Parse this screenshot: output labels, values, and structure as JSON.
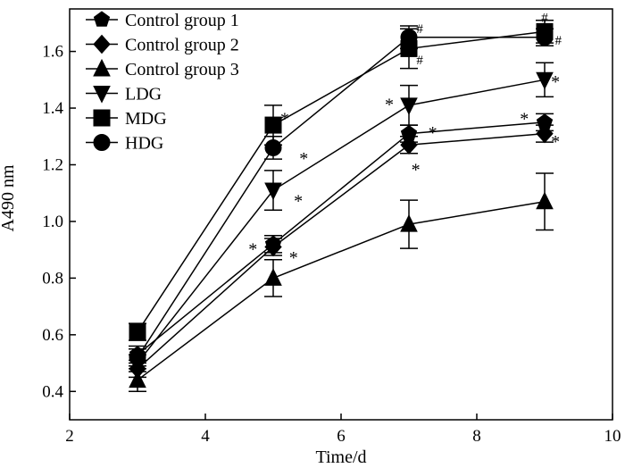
{
  "chart_data": {
    "type": "line",
    "title": "",
    "xlabel": "Time/d",
    "ylabel": "A490 nm",
    "xlim": [
      2,
      10
    ],
    "ylim": [
      0.3,
      1.75
    ],
    "xticks": [
      2,
      4,
      6,
      8,
      10
    ],
    "yticks": [
      0.4,
      0.6,
      0.8,
      1.0,
      1.2,
      1.4,
      1.6
    ],
    "xtick_labels": [
      "2",
      "4",
      "6",
      "8",
      "10"
    ],
    "ytick_labels": [
      "0.4",
      "0.6",
      "0.8",
      "1.0",
      "1.2",
      "1.4",
      "1.6"
    ],
    "grid": false,
    "legend_position": "top-left",
    "x": [
      3,
      5,
      7,
      9
    ],
    "series": [
      {
        "name": "Control group 1",
        "marker": "pentagon",
        "values": [
          0.53,
          0.92,
          1.31,
          1.35
        ],
        "errors": [
          0.03,
          0.03,
          0.03,
          0.03
        ]
      },
      {
        "name": "Control group 2",
        "marker": "diamond",
        "values": [
          0.48,
          0.91,
          1.27,
          1.31
        ],
        "errors": [
          0.03,
          0.03,
          0.03,
          0.03
        ]
      },
      {
        "name": "Control group 3",
        "marker": "triangle-up",
        "values": [
          0.44,
          0.8,
          0.99,
          1.07
        ],
        "errors": [
          0.04,
          0.065,
          0.085,
          0.1
        ]
      },
      {
        "name": "LDG",
        "marker": "triangle-down",
        "values": [
          0.5,
          1.11,
          1.41,
          1.5
        ],
        "errors": [
          0.03,
          0.07,
          0.07,
          0.06
        ]
      },
      {
        "name": "MDG",
        "marker": "square",
        "values": [
          0.61,
          1.34,
          1.61,
          1.67
        ],
        "errors": [
          0.03,
          0.07,
          0.07,
          0.04
        ]
      },
      {
        "name": "HDG",
        "marker": "circle",
        "values": [
          0.52,
          1.26,
          1.65,
          1.65
        ],
        "errors": [
          0.03,
          0.04,
          0.04,
          0.03
        ]
      }
    ],
    "annotations": [
      {
        "text": "*",
        "x": 5.17,
        "y": 1.38
      },
      {
        "text": "*",
        "x": 5.45,
        "y": 1.24
      },
      {
        "text": "*",
        "x": 5.37,
        "y": 1.09
      },
      {
        "text": "*",
        "x": 4.7,
        "y": 0.92
      },
      {
        "text": "*",
        "x": 5.3,
        "y": 0.89
      },
      {
        "text": "*",
        "x": 6.71,
        "y": 1.43
      },
      {
        "text": "*",
        "x": 7.35,
        "y": 1.33
      },
      {
        "text": "*",
        "x": 7.1,
        "y": 1.2
      },
      {
        "text": "*",
        "x": 9.16,
        "y": 1.51
      },
      {
        "text": "*",
        "x": 8.7,
        "y": 1.38
      },
      {
        "text": "*",
        "x": 9.16,
        "y": 1.3
      },
      {
        "text": "#",
        "x": 7.16,
        "y": 1.68
      },
      {
        "text": "#",
        "x": 7.16,
        "y": 1.57
      },
      {
        "text": "#",
        "x": 9.0,
        "y": 1.72
      },
      {
        "text": "#",
        "x": 9.2,
        "y": 1.64
      }
    ]
  }
}
